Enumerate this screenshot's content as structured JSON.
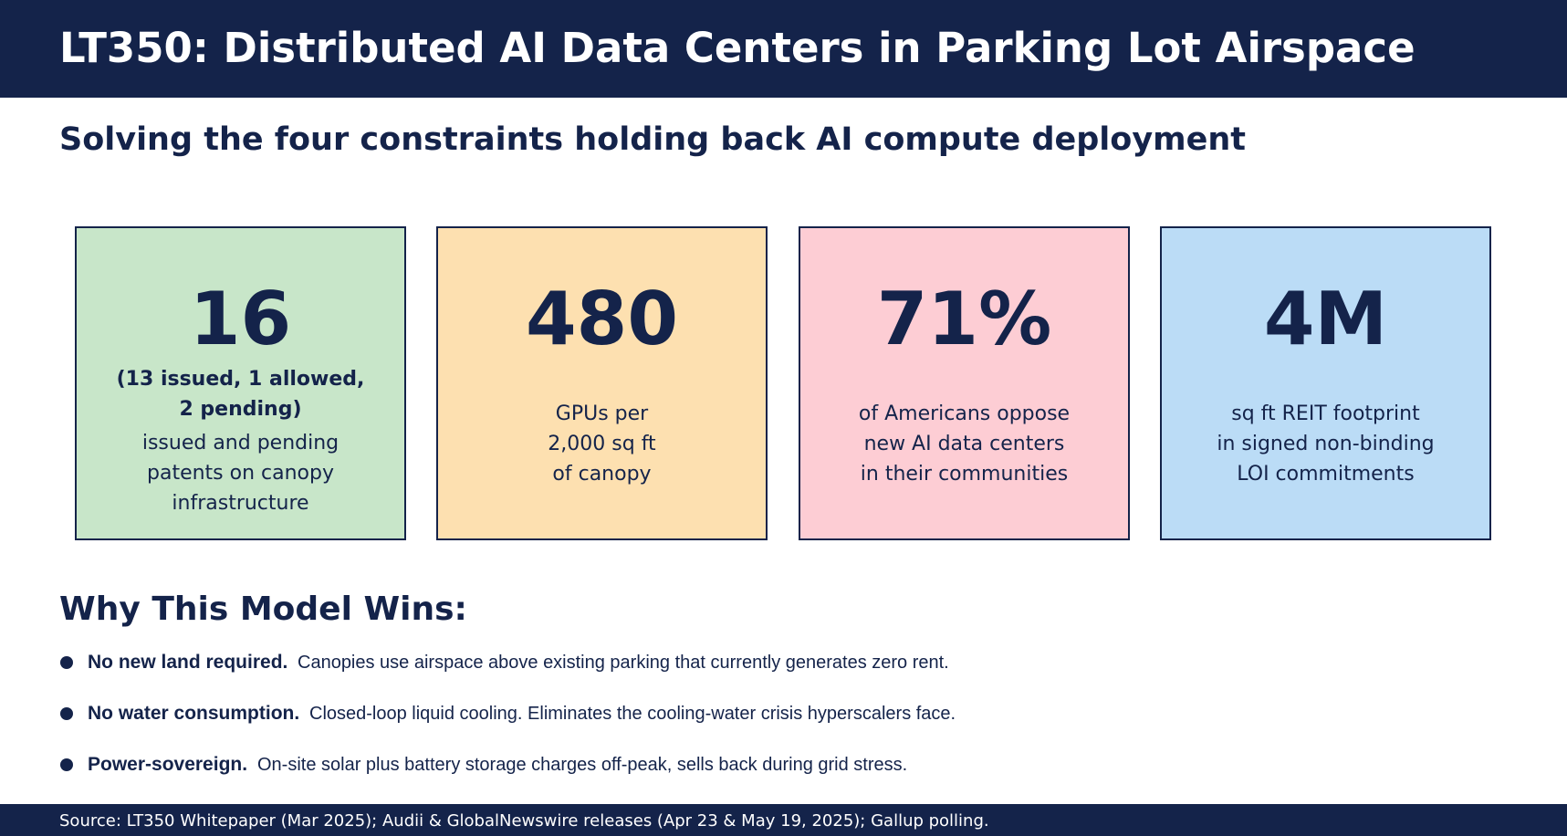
{
  "header": {
    "title": "LT350: Distributed AI Data Centers in Parking Lot Airspace"
  },
  "subtitle": "Solving the four constraints holding back AI compute deployment",
  "cards": [
    {
      "value": "16",
      "note": [
        "(13 issued, 1 allowed,",
        "2 pending)"
      ],
      "description": [
        "issued and pending",
        "patents on canopy",
        "infrastructure"
      ],
      "color": "#c8e6c9"
    },
    {
      "value": "480",
      "description": [
        "GPUs per",
        "2,000 sq ft",
        "of canopy"
      ],
      "color": "#fde0b0"
    },
    {
      "value": "71%",
      "description": [
        "of Americans oppose",
        "new AI data centers",
        "in their communities"
      ],
      "color": "#fdcdd4"
    },
    {
      "value": "4M",
      "description": [
        "sq ft REIT footprint",
        "in signed non-binding",
        "LOI commitments"
      ],
      "color": "#bbdcf6"
    }
  ],
  "why": {
    "heading": "Why This Model Wins:",
    "bullets": [
      {
        "lead": "No new land required.",
        "text": "Canopies use airspace above existing parking that currently generates zero rent."
      },
      {
        "lead": "No water consumption.",
        "text": "Closed-loop liquid cooling. Eliminates the cooling-water crisis hyperscalers face."
      },
      {
        "lead": "Power-sovereign.",
        "text": "On-site solar plus battery storage charges off-peak, sells back during grid stress."
      }
    ]
  },
  "footer": {
    "source": "Source: LT350 Whitepaper (Mar 2025); Audii & GlobalNewswire releases (Apr 23 & May 19, 2025); Gallup polling."
  }
}
